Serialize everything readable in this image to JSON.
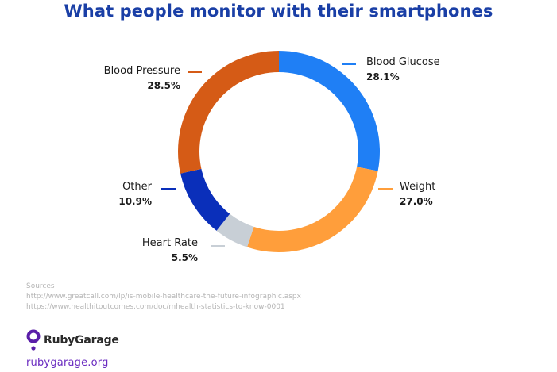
{
  "title": "What people monitor with their smartphones",
  "colors": {
    "title": "#1a3fa6",
    "site": "#6a2bc0",
    "logo_mark": "#5a1ea8"
  },
  "chart_data": {
    "type": "pie",
    "title": "What people monitor with their smartphones",
    "variant": "donut",
    "slices": [
      {
        "label": "Blood Glucose",
        "value": 28.1,
        "value_label": "28.1%",
        "color": "#1f7ff5"
      },
      {
        "label": "Weight",
        "value": 27.0,
        "value_label": "27.0%",
        "color": "#ff9e3b"
      },
      {
        "label": "Heart Rate",
        "value": 5.5,
        "value_label": "5.5%",
        "color": "#c8cfd6"
      },
      {
        "label": "Other",
        "value": 10.9,
        "value_label": "10.9%",
        "color": "#0a2fba"
      },
      {
        "label": "Blood Pressure",
        "value": 28.5,
        "value_label": "28.5%",
        "color": "#d55b16"
      }
    ]
  },
  "sources": {
    "heading": "Sources",
    "lines": [
      "http://www.greatcall.com/lp/is-mobile-healthcare-the-future-infographic.aspx",
      "https://www.healthitoutcomes.com/doc/mhealth-statistics-to-know-0001"
    ]
  },
  "brand": {
    "name": "RubyGarage",
    "site": "rubygarage.org",
    "logo_icon": "rubygarage-logo-icon"
  }
}
